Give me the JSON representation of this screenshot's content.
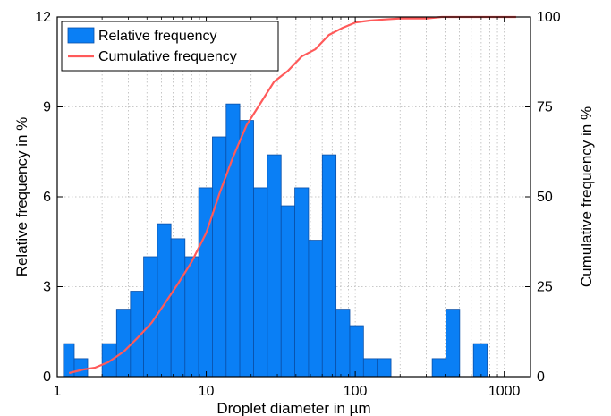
{
  "chart_data": {
    "type": "bar",
    "x_scale": "log",
    "xlim": [
      1,
      1500
    ],
    "ylim": [
      0,
      12
    ],
    "y2lim": [
      0,
      100
    ],
    "xlabel": "Droplet diameter in µm",
    "ylabel": "Relative frequency in %",
    "y2label": "Cumulative frequency in %",
    "x_ticks": [
      1,
      10,
      100,
      1000
    ],
    "x_tick_labels": [
      "1",
      "10",
      "100",
      "1000"
    ],
    "y_ticks": [
      0,
      3,
      6,
      9,
      12
    ],
    "y_tick_labels": [
      "0",
      "3",
      "6",
      "9",
      "12"
    ],
    "y2_ticks": [
      0,
      25,
      50,
      75,
      100
    ],
    "y2_tick_labels": [
      "0",
      "25",
      "50",
      "75",
      "100"
    ],
    "grid": true,
    "legend_position": "top-left",
    "colors": {
      "bars": "#0a7ff5",
      "bar_edge": "#0a50a8",
      "line": "#ff5a5a",
      "grid": "#b8b8b8"
    },
    "series": [
      {
        "name": "Relative frequency",
        "type": "bar",
        "bins": [
          {
            "x0": 1.1,
            "x1": 1.3,
            "value": 1.1
          },
          {
            "x0": 1.3,
            "x1": 1.6,
            "value": 0.6
          },
          {
            "x0": 1.6,
            "x1": 2.0,
            "value": 0
          },
          {
            "x0": 2.0,
            "x1": 2.5,
            "value": 1.1
          },
          {
            "x0": 2.5,
            "x1": 3.1,
            "value": 2.25
          },
          {
            "x0": 3.1,
            "x1": 3.8,
            "value": 2.85
          },
          {
            "x0": 3.8,
            "x1": 4.7,
            "value": 4.0
          },
          {
            "x0": 4.7,
            "x1": 5.8,
            "value": 5.1
          },
          {
            "x0": 5.8,
            "x1": 7.2,
            "value": 4.6
          },
          {
            "x0": 7.2,
            "x1": 8.9,
            "value": 4.0
          },
          {
            "x0": 8.9,
            "x1": 11.0,
            "value": 6.3
          },
          {
            "x0": 11.0,
            "x1": 13.6,
            "value": 8.0
          },
          {
            "x0": 13.6,
            "x1": 16.8,
            "value": 9.1
          },
          {
            "x0": 16.8,
            "x1": 20.8,
            "value": 8.55
          },
          {
            "x0": 20.8,
            "x1": 25.7,
            "value": 6.3
          },
          {
            "x0": 25.7,
            "x1": 31.8,
            "value": 7.4
          },
          {
            "x0": 31.8,
            "x1": 39.3,
            "value": 5.7
          },
          {
            "x0": 39.3,
            "x1": 48.6,
            "value": 6.3
          },
          {
            "x0": 48.6,
            "x1": 60.1,
            "value": 4.55
          },
          {
            "x0": 60.1,
            "x1": 74.3,
            "value": 7.4
          },
          {
            "x0": 74.3,
            "x1": 91.9,
            "value": 2.25
          },
          {
            "x0": 91.9,
            "x1": 113.6,
            "value": 1.7
          },
          {
            "x0": 113.6,
            "x1": 140.5,
            "value": 0.6
          },
          {
            "x0": 140.5,
            "x1": 173.7,
            "value": 0.6
          },
          {
            "x0": 173.7,
            "x1": 214.8,
            "value": 0
          },
          {
            "x0": 214.8,
            "x1": 265.6,
            "value": 0
          },
          {
            "x0": 265.6,
            "x1": 328.4,
            "value": 0
          },
          {
            "x0": 328.4,
            "x1": 406.1,
            "value": 0.6
          },
          {
            "x0": 406.1,
            "x1": 502.2,
            "value": 2.25
          },
          {
            "x0": 502.2,
            "x1": 621.0,
            "value": 0
          },
          {
            "x0": 621.0,
            "x1": 767.9,
            "value": 1.1
          }
        ]
      },
      {
        "name": "Cumulative frequency",
        "type": "line",
        "x": [
          1.2,
          1.5,
          1.8,
          2.2,
          2.8,
          3.5,
          4.3,
          5.2,
          6.5,
          8.0,
          10.0,
          12.3,
          15.1,
          18.7,
          23.1,
          28.5,
          35.3,
          43.6,
          53.8,
          66.5,
          82.3,
          101.0,
          125.0,
          155.0,
          200.0,
          300.0,
          380.0,
          450.0,
          550.0,
          700.0,
          1000.0,
          1200.0
        ],
        "y": [
          1,
          2,
          2.5,
          4,
          7,
          11,
          15,
          20,
          26,
          32,
          40,
          51,
          61,
          70,
          76,
          82,
          85,
          89,
          91,
          95,
          97,
          98.5,
          99,
          99.3,
          99.6,
          99.6,
          100,
          100,
          100,
          100,
          100,
          100
        ]
      }
    ]
  }
}
